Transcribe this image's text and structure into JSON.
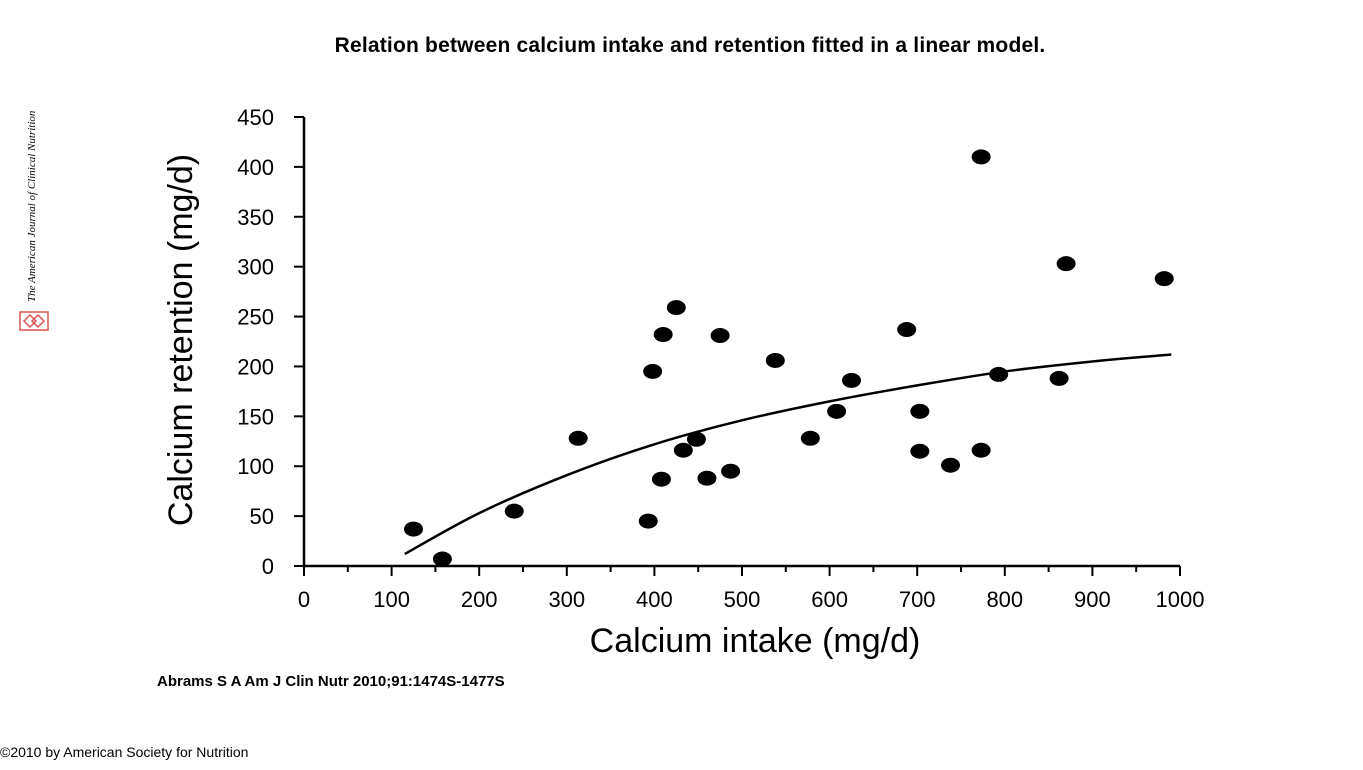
{
  "slide": {
    "title": "Relation between calcium intake and retention fitted in a linear model.",
    "citation": "Abrams S A Am J Clin Nutr 2010;91:1474S-1477S",
    "copyright": "©2010 by American Society for Nutrition",
    "journal_name": "The American Journal of Clinical Nutrition",
    "logo_icon": "journal-logo-icon",
    "logo_color": "#d9534f"
  },
  "chart_data": {
    "type": "scatter",
    "title": "",
    "xlabel": "Calcium intake (mg/d)",
    "ylabel": "Calcium retention (mg/d)",
    "xlim": [
      0,
      1000
    ],
    "ylim": [
      0,
      450
    ],
    "xticks": [
      0,
      100,
      200,
      300,
      400,
      500,
      600,
      700,
      800,
      900,
      1000
    ],
    "yticks": [
      0,
      50,
      100,
      150,
      200,
      250,
      300,
      350,
      400,
      450
    ],
    "grid": false,
    "legend": "none",
    "points": [
      {
        "x": 125,
        "y": 37
      },
      {
        "x": 158,
        "y": 7
      },
      {
        "x": 240,
        "y": 55
      },
      {
        "x": 313,
        "y": 128
      },
      {
        "x": 393,
        "y": 45
      },
      {
        "x": 398,
        "y": 195
      },
      {
        "x": 408,
        "y": 87
      },
      {
        "x": 410,
        "y": 232
      },
      {
        "x": 425,
        "y": 259
      },
      {
        "x": 433,
        "y": 116
      },
      {
        "x": 448,
        "y": 127
      },
      {
        "x": 460,
        "y": 88
      },
      {
        "x": 475,
        "y": 231
      },
      {
        "x": 487,
        "y": 95
      },
      {
        "x": 538,
        "y": 206
      },
      {
        "x": 578,
        "y": 128
      },
      {
        "x": 608,
        "y": 155
      },
      {
        "x": 625,
        "y": 186
      },
      {
        "x": 688,
        "y": 237
      },
      {
        "x": 703,
        "y": 155
      },
      {
        "x": 703,
        "y": 115
      },
      {
        "x": 738,
        "y": 101
      },
      {
        "x": 773,
        "y": 410
      },
      {
        "x": 773,
        "y": 116
      },
      {
        "x": 793,
        "y": 192
      },
      {
        "x": 862,
        "y": 188
      },
      {
        "x": 870,
        "y": 303
      },
      {
        "x": 982,
        "y": 288
      }
    ],
    "fit_curve": [
      {
        "x": 115,
        "y": 12
      },
      {
        "x": 200,
        "y": 53
      },
      {
        "x": 300,
        "y": 91
      },
      {
        "x": 400,
        "y": 122
      },
      {
        "x": 500,
        "y": 146
      },
      {
        "x": 600,
        "y": 165
      },
      {
        "x": 700,
        "y": 181
      },
      {
        "x": 800,
        "y": 195
      },
      {
        "x": 900,
        "y": 205
      },
      {
        "x": 990,
        "y": 212
      }
    ],
    "marker_color": "#000000",
    "line_color": "#000000"
  }
}
